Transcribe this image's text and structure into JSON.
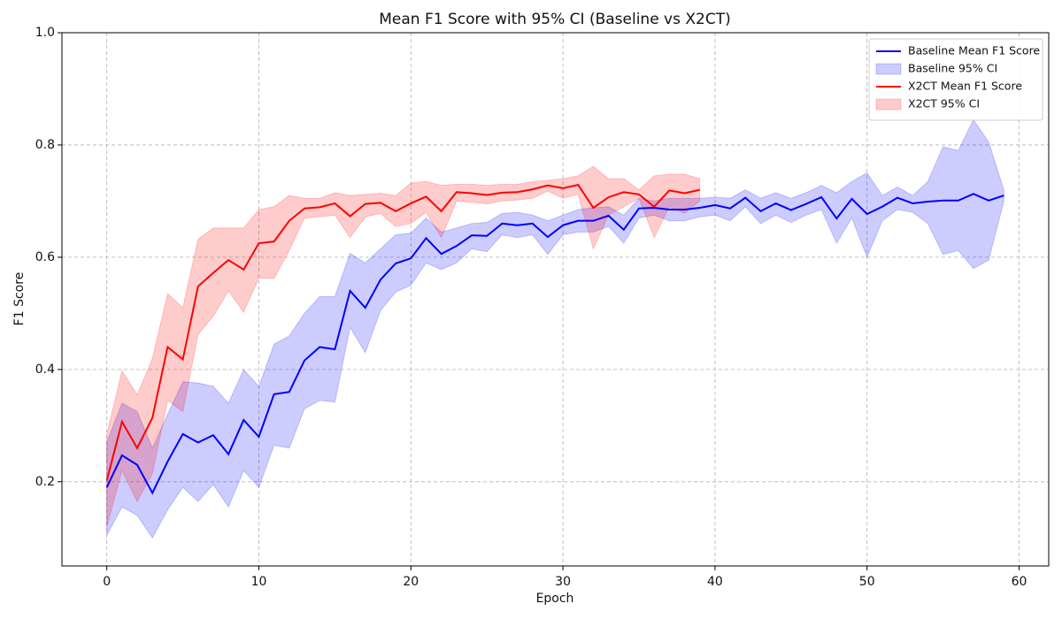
{
  "chart_data": {
    "type": "line",
    "title": "Mean F1 Score with 95% CI (Baseline vs X2CT)",
    "x_label": "Epoch",
    "y_label": "F1 Score",
    "x": [
      0,
      1,
      2,
      3,
      4,
      5,
      6,
      7,
      8,
      9,
      10,
      11,
      12,
      13,
      14,
      15,
      16,
      17,
      18,
      19,
      20,
      21,
      22,
      23,
      24,
      25,
      26,
      27,
      28,
      29,
      30,
      31,
      32,
      33,
      34,
      35,
      36,
      37,
      38,
      39,
      40,
      41,
      42,
      43,
      44,
      45,
      46,
      47,
      48,
      49,
      50,
      51,
      52,
      53,
      54,
      55,
      56,
      57,
      58,
      59
    ],
    "xlim": [
      -2.95,
      61.95
    ],
    "xticks": [
      0,
      10,
      20,
      30,
      40,
      50,
      60
    ],
    "ylim": [
      0.05,
      1.0
    ],
    "yticks": [
      0.2,
      0.4,
      0.6,
      0.8,
      {
        "value": 1.0,
        "label": "1.0"
      }
    ],
    "grid": true,
    "legend": "upper right",
    "series": [
      {
        "name": "Baseline Mean F1 Score",
        "color": "#0000ff",
        "values": [
          0.19,
          0.247,
          0.23,
          0.18,
          0.236,
          0.285,
          0.27,
          0.283,
          0.249,
          0.31,
          0.28,
          0.356,
          0.36,
          0.416,
          0.44,
          0.436,
          0.54,
          0.51,
          0.56,
          0.589,
          0.598,
          0.634,
          0.606,
          0.62,
          0.639,
          0.638,
          0.66,
          0.657,
          0.66,
          0.636,
          0.657,
          0.665,
          0.665,
          0.674,
          0.649,
          0.687,
          0.688,
          0.685,
          0.685,
          0.688,
          0.693,
          0.687,
          0.706,
          0.682,
          0.696,
          0.684,
          0.695,
          0.707,
          0.669,
          0.704,
          0.677,
          0.69,
          0.706,
          0.696,
          0.699,
          0.701,
          0.701,
          0.713,
          0.701,
          0.71
        ]
      },
      {
        "name": "X2CT Mean F1 Score",
        "color": "#ff0000",
        "values": [
          0.202,
          0.307,
          0.26,
          0.314,
          0.44,
          0.418,
          0.548,
          0.572,
          0.595,
          0.578,
          0.625,
          0.628,
          0.665,
          0.687,
          0.689,
          0.696,
          0.673,
          0.695,
          0.697,
          0.682,
          0.696,
          0.708,
          0.682,
          0.716,
          0.714,
          0.711,
          0.715,
          0.716,
          0.721,
          0.728,
          0.723,
          0.729,
          0.688,
          0.707,
          0.716,
          0.712,
          0.69,
          0.719,
          0.714,
          0.72,
          null,
          null,
          null,
          null,
          null,
          null,
          null,
          null,
          null,
          null,
          null,
          null,
          null,
          null,
          null,
          null,
          null,
          null,
          null,
          null
        ]
      }
    ],
    "bands": [
      {
        "name": "Baseline 95% CI",
        "color": "#0000ff",
        "lower": [
          0.105,
          0.155,
          0.14,
          0.1,
          0.15,
          0.19,
          0.165,
          0.195,
          0.155,
          0.22,
          0.19,
          0.265,
          0.26,
          0.33,
          0.345,
          0.342,
          0.475,
          0.43,
          0.505,
          0.538,
          0.55,
          0.59,
          0.578,
          0.59,
          0.615,
          0.61,
          0.64,
          0.635,
          0.64,
          0.605,
          0.64,
          0.645,
          0.645,
          0.655,
          0.625,
          0.67,
          0.675,
          0.665,
          0.665,
          0.672,
          0.675,
          0.665,
          0.69,
          0.66,
          0.675,
          0.662,
          0.675,
          0.685,
          0.625,
          0.67,
          0.6,
          0.665,
          0.685,
          0.68,
          0.66,
          0.605,
          0.612,
          0.58,
          0.595,
          0.7
        ],
        "upper": [
          0.27,
          0.34,
          0.325,
          0.26,
          0.32,
          0.378,
          0.376,
          0.37,
          0.34,
          0.4,
          0.37,
          0.445,
          0.46,
          0.5,
          0.53,
          0.53,
          0.607,
          0.59,
          0.615,
          0.64,
          0.643,
          0.67,
          0.645,
          0.652,
          0.66,
          0.662,
          0.678,
          0.68,
          0.675,
          0.665,
          0.675,
          0.685,
          0.688,
          0.69,
          0.675,
          0.705,
          0.7,
          0.705,
          0.705,
          0.705,
          0.707,
          0.705,
          0.72,
          0.705,
          0.715,
          0.705,
          0.715,
          0.728,
          0.715,
          0.735,
          0.75,
          0.71,
          0.725,
          0.71,
          0.735,
          0.797,
          0.79,
          0.845,
          0.805,
          0.72
        ]
      },
      {
        "name": "X2CT 95% CI",
        "color": "#ff0000",
        "lower": [
          0.12,
          0.22,
          0.165,
          0.215,
          0.345,
          0.325,
          0.462,
          0.495,
          0.54,
          0.502,
          0.563,
          0.562,
          0.612,
          0.67,
          0.672,
          0.675,
          0.635,
          0.672,
          0.678,
          0.655,
          0.66,
          0.68,
          0.635,
          0.7,
          0.698,
          0.695,
          0.7,
          0.702,
          0.705,
          0.718,
          0.705,
          0.712,
          0.615,
          0.675,
          0.69,
          0.705,
          0.635,
          0.69,
          0.678,
          0.7,
          null,
          null,
          null,
          null,
          null,
          null,
          null,
          null,
          null,
          null,
          null,
          null,
          null,
          null,
          null,
          null,
          null,
          null,
          null,
          null
        ],
        "upper": [
          0.285,
          0.398,
          0.355,
          0.42,
          0.535,
          0.51,
          0.632,
          0.652,
          0.652,
          0.652,
          0.685,
          0.69,
          0.71,
          0.705,
          0.705,
          0.715,
          0.71,
          0.712,
          0.714,
          0.71,
          0.732,
          0.735,
          0.728,
          0.73,
          0.73,
          0.728,
          0.73,
          0.73,
          0.735,
          0.737,
          0.74,
          0.745,
          0.762,
          0.74,
          0.74,
          0.72,
          0.745,
          0.748,
          0.748,
          0.74,
          null,
          null,
          null,
          null,
          null,
          null,
          null,
          null,
          null,
          null,
          null,
          null,
          null,
          null,
          null,
          null,
          null,
          null,
          null,
          null
        ]
      }
    ]
  }
}
